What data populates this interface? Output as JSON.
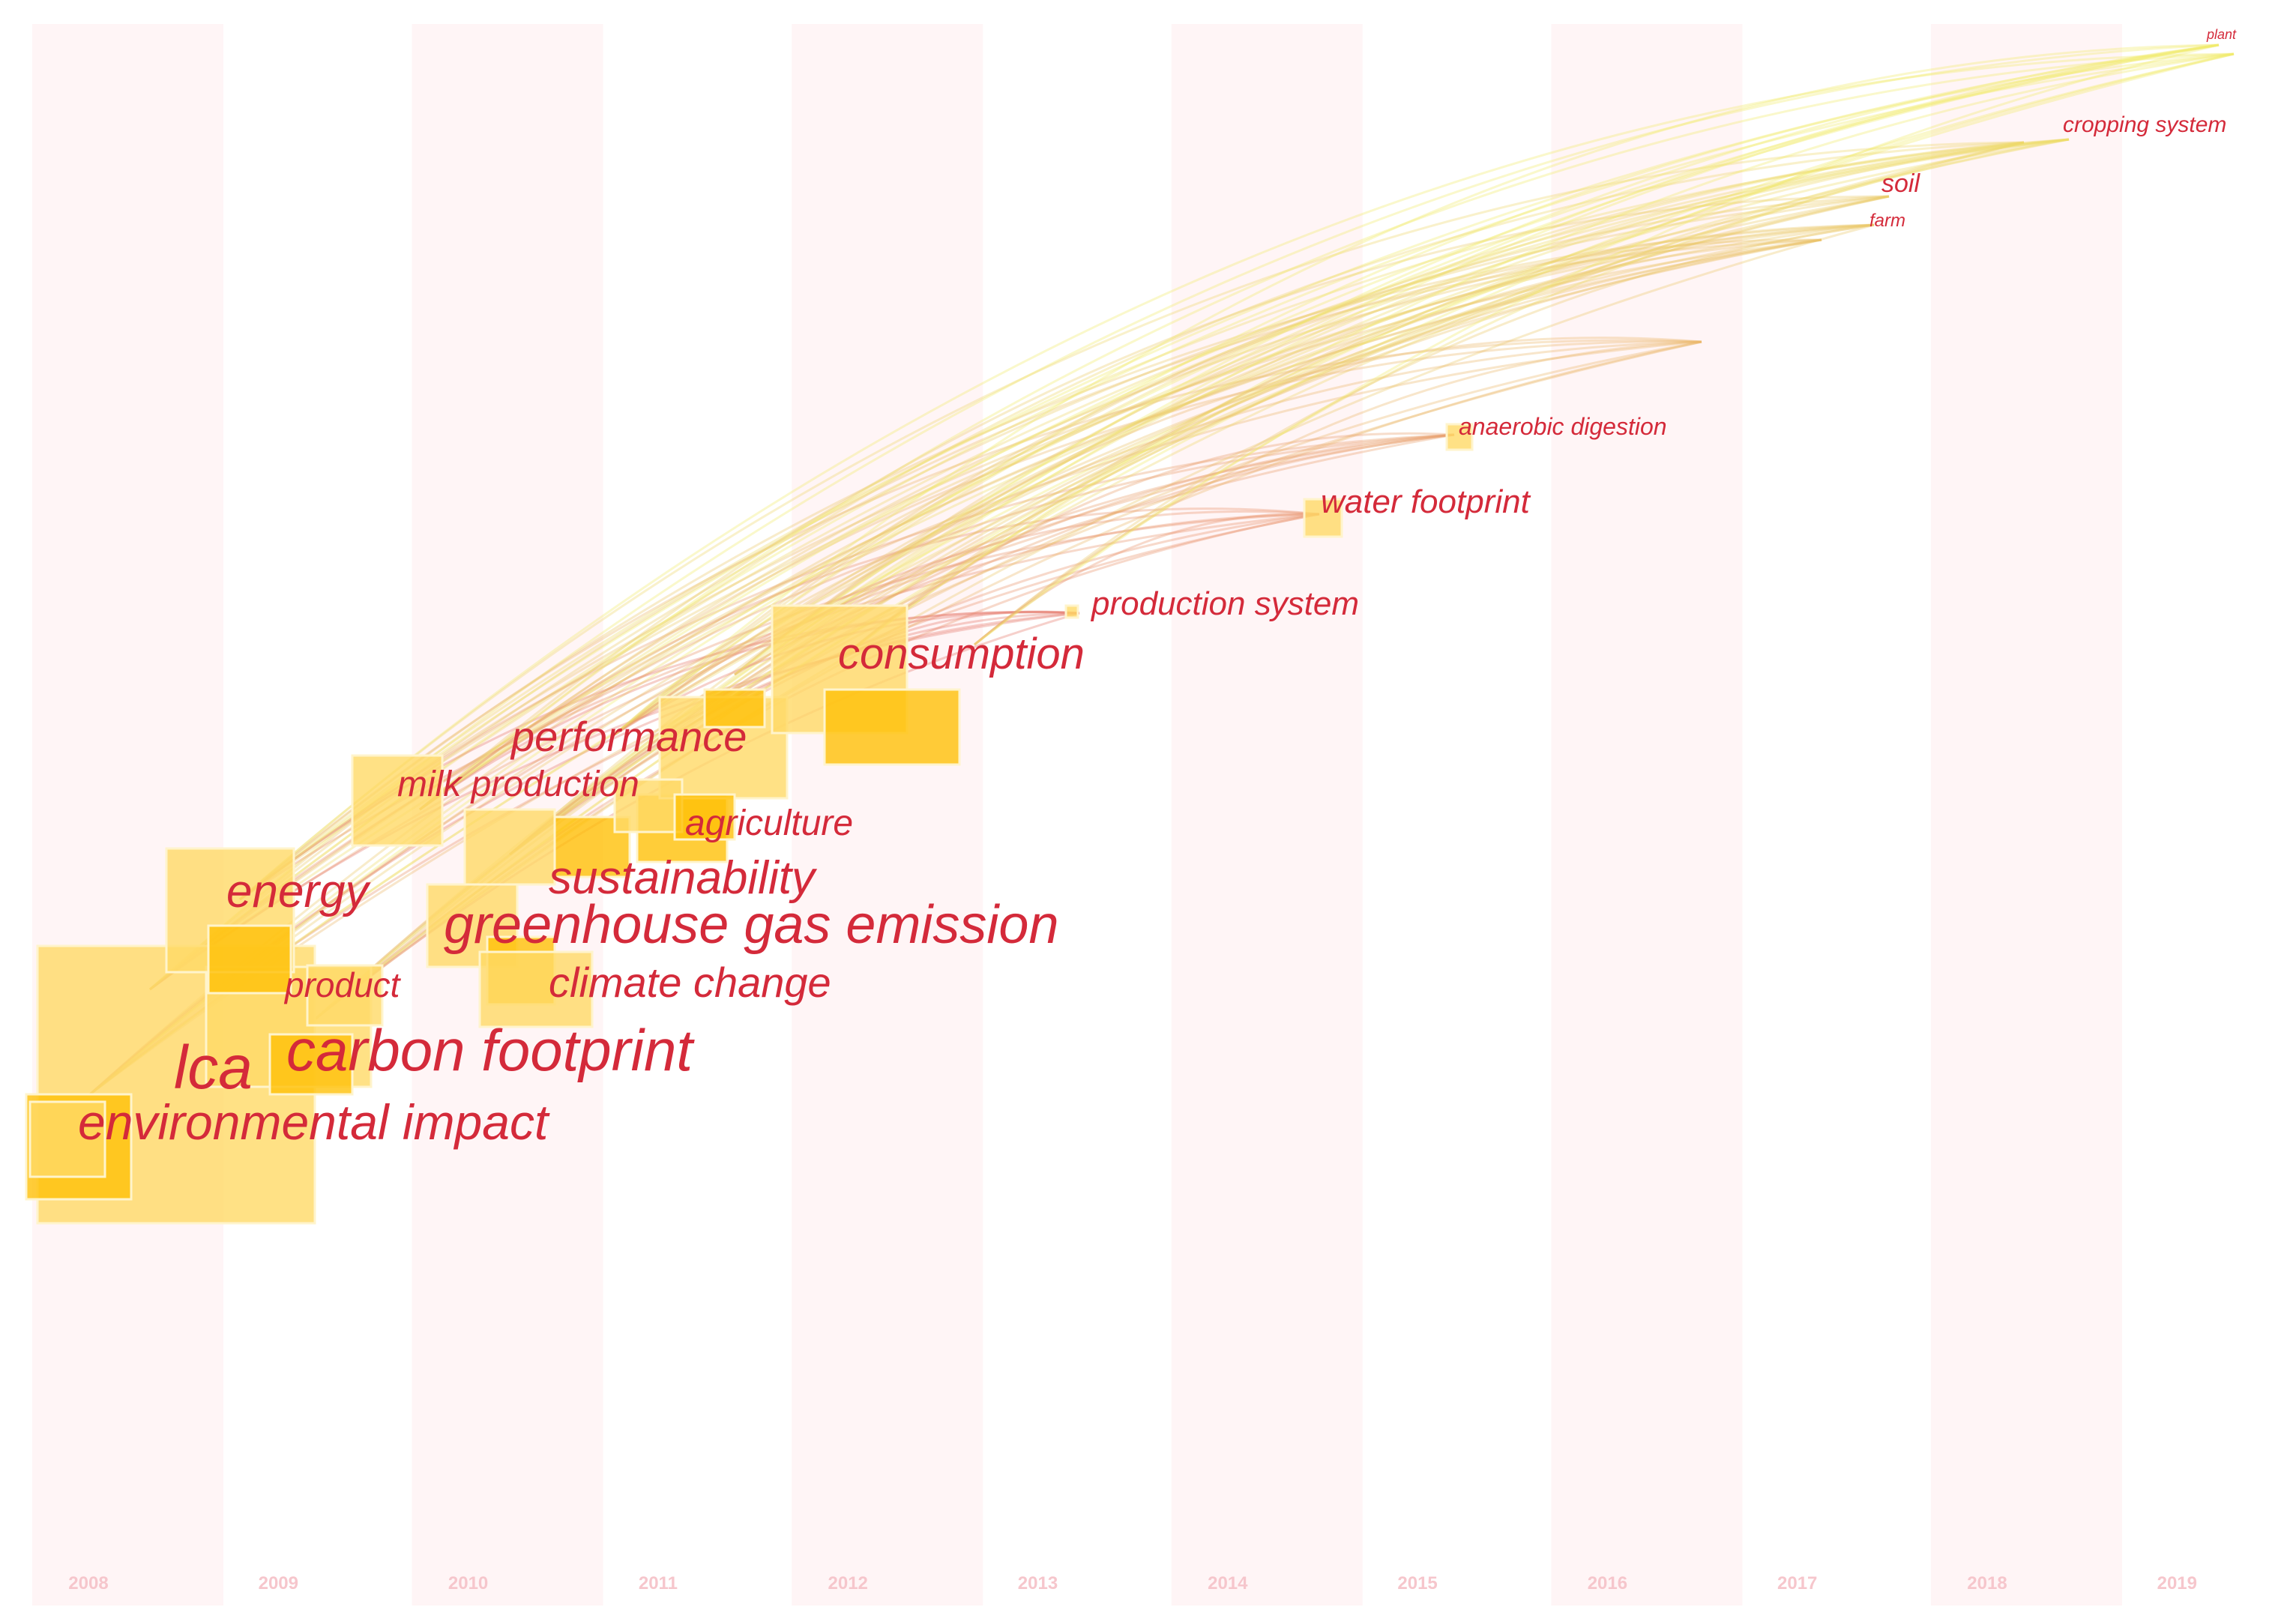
{
  "chart_data": {
    "type": "timezone",
    "years": [
      "2008",
      "2009",
      "2010",
      "2011",
      "2012",
      "2013",
      "2014",
      "2015",
      "2016",
      "2017",
      "2018",
      "2019"
    ],
    "keywords": [
      {
        "label": "lca",
        "year": 2008,
        "size": 1.0
      },
      {
        "label": "environmental impact",
        "year": 2008,
        "size": 0.8
      },
      {
        "label": "carbon footprint",
        "year": 2009,
        "size": 0.85
      },
      {
        "label": "energy",
        "year": 2009,
        "size": 0.65
      },
      {
        "label": "product",
        "year": 2009,
        "size": 0.5
      },
      {
        "label": "milk production",
        "year": 2010,
        "size": 0.45
      },
      {
        "label": "greenhouse gas emission",
        "year": 2010,
        "size": 0.85
      },
      {
        "label": "climate change",
        "year": 2010,
        "size": 0.6
      },
      {
        "label": "sustainability",
        "year": 2010,
        "size": 0.65
      },
      {
        "label": "performance",
        "year": 2011,
        "size": 0.55
      },
      {
        "label": "agriculture",
        "year": 2011,
        "size": 0.5
      },
      {
        "label": "consumption",
        "year": 2012,
        "size": 0.6
      },
      {
        "label": "production system",
        "year": 2013,
        "size": 0.4
      },
      {
        "label": "water footprint",
        "year": 2014,
        "size": 0.35
      },
      {
        "label": "anaerobic digestion",
        "year": 2015,
        "size": 0.2
      },
      {
        "label": "soil",
        "year": 2017,
        "size": 0.12
      },
      {
        "label": "farm",
        "year": 2017,
        "size": 0.08
      },
      {
        "label": "cropping system",
        "year": 2018,
        "size": 0.15
      },
      {
        "label": "plant",
        "year": 2019,
        "size": 0.05
      }
    ],
    "colors": {
      "node": "#ffc107",
      "node_light": "#ffd966",
      "label": "#d42a3a",
      "year_label": "#f6c6cc",
      "band": "#fff5f6",
      "link_early": "#e0506a",
      "link_late": "#f0ee6a"
    }
  }
}
